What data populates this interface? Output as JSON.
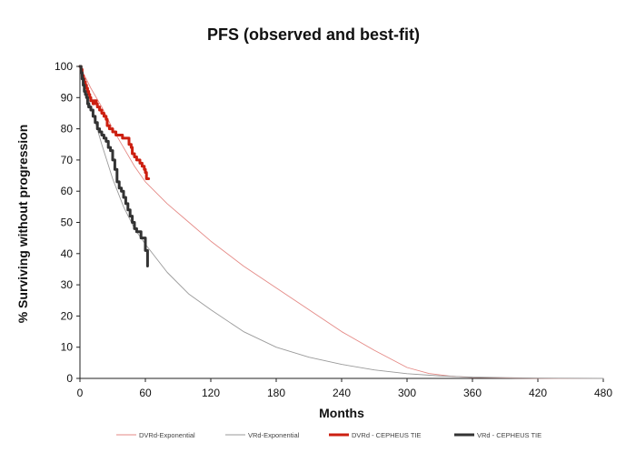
{
  "chart_data": {
    "type": "line",
    "title": "PFS (observed and best-fit)",
    "xlabel": "Months",
    "ylabel": "% Surviving without progression",
    "xlim": [
      0,
      480
    ],
    "ylim": [
      0,
      100
    ],
    "x_ticks": [
      0,
      60,
      120,
      180,
      240,
      300,
      360,
      420,
      480
    ],
    "y_ticks": [
      0,
      10,
      20,
      30,
      40,
      50,
      60,
      70,
      80,
      90,
      100
    ],
    "grid": false,
    "legend_position": "bottom",
    "series": [
      {
        "name": "DVRd-Exponential",
        "style": "thin",
        "color": "#e58a86",
        "x": [
          0,
          10,
          20,
          30,
          40,
          50,
          60,
          80,
          100,
          120,
          150,
          180,
          210,
          240,
          270,
          300,
          320,
          340,
          360,
          400,
          440,
          480
        ],
        "y": [
          100,
          93,
          87,
          80,
          74,
          68,
          63,
          56,
          50,
          44,
          36,
          29,
          22,
          15,
          9,
          3.5,
          1.6,
          0.7,
          0.3,
          0.1,
          0,
          0
        ]
      },
      {
        "name": "VRd-Exponential",
        "style": "thin",
        "color": "#9a9a9a",
        "x": [
          0,
          10,
          20,
          30,
          40,
          50,
          60,
          80,
          100,
          120,
          150,
          180,
          210,
          240,
          270,
          300,
          330,
          360,
          420,
          480
        ],
        "y": [
          100,
          87,
          75,
          64,
          55,
          48,
          43,
          34,
          27,
          22,
          15,
          10,
          6.8,
          4.5,
          2.7,
          1.5,
          0.8,
          0.4,
          0.1,
          0
        ]
      },
      {
        "name": "DVRd - CEPHEUS TIE",
        "style": "step",
        "color": "#cc1f10",
        "x": [
          0,
          1,
          2,
          3,
          4,
          5,
          6,
          7,
          8,
          9,
          10,
          12,
          13,
          15,
          16,
          18,
          20,
          22,
          24,
          25,
          27,
          30,
          33,
          36,
          39,
          42,
          45,
          47,
          48,
          50,
          52,
          54,
          55,
          57,
          59,
          60,
          61,
          63
        ],
        "y": [
          100,
          99,
          97,
          96,
          95,
          94,
          93,
          92,
          91,
          90,
          89,
          88,
          89,
          88,
          87,
          86,
          85,
          84,
          83,
          81,
          80,
          79,
          78,
          78,
          77,
          77,
          75,
          74,
          72,
          71,
          70,
          70,
          69,
          68,
          67,
          66,
          64,
          64
        ]
      },
      {
        "name": "VRd - CEPHEUS TIE",
        "style": "step",
        "color": "#333333",
        "x": [
          0,
          1,
          2,
          3,
          4,
          5,
          6,
          7,
          8,
          10,
          12,
          14,
          16,
          18,
          20,
          22,
          24,
          26,
          28,
          30,
          32,
          34,
          36,
          38,
          40,
          42,
          44,
          46,
          48,
          50,
          52,
          54,
          56,
          58,
          60,
          62
        ],
        "y": [
          100,
          98,
          96,
          94,
          92,
          91,
          90,
          88,
          87,
          86,
          84,
          82,
          80,
          79,
          78,
          77,
          76,
          74,
          73,
          70,
          67,
          63,
          61,
          60,
          58,
          56,
          54,
          52,
          50,
          48,
          47,
          47,
          45,
          45,
          41,
          36
        ]
      }
    ]
  }
}
